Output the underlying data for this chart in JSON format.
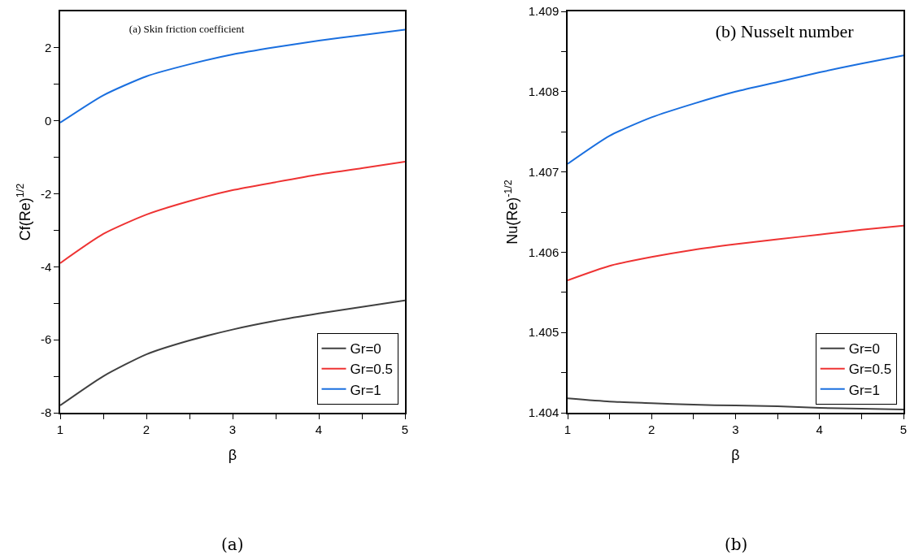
{
  "chart_data": [
    {
      "type": "line",
      "title": "(a) Skin friction coefficient",
      "xlabel": "β",
      "ylabel": "Cf(Re)$^{1/2}$",
      "annotations": [
        "(a)"
      ],
      "x": [
        1,
        1.5,
        2,
        2.5,
        3,
        3.5,
        4,
        4.5,
        5
      ],
      "series": [
        {
          "name": "Gr=0",
          "color": "#404040",
          "values": [
            -7.8,
            -7.0,
            -6.4,
            -6.02,
            -5.72,
            -5.48,
            -5.28,
            -5.1,
            -4.92
          ]
        },
        {
          "name": "Gr=0.5",
          "color": "#ee3333",
          "values": [
            -3.9,
            -3.1,
            -2.57,
            -2.2,
            -1.9,
            -1.68,
            -1.47,
            -1.3,
            -1.12
          ]
        },
        {
          "name": "Gr=1",
          "color": "#1a6fdf",
          "values": [
            -0.05,
            0.7,
            1.22,
            1.55,
            1.82,
            2.02,
            2.2,
            2.35,
            2.5
          ]
        }
      ],
      "xlim": [
        1,
        5
      ],
      "xticks": [
        1,
        {
          "value": 1.5,
          "label": null
        },
        2,
        {
          "value": 2.5,
          "label": null
        },
        3,
        {
          "value": 3.5,
          "label": null
        },
        4,
        {
          "value": 4.5,
          "label": null
        },
        5
      ],
      "ylim": [
        -8,
        3
      ],
      "yticks": [
        -8,
        {
          "value": -7,
          "label": null
        },
        -6,
        {
          "value": -5,
          "label": null
        },
        -4,
        {
          "value": -3,
          "label": null
        },
        -2,
        {
          "value": -1,
          "label": null
        },
        0,
        {
          "value": 1,
          "label": null
        },
        2
      ],
      "grid": false,
      "legend": "bottom right",
      "marker": "none",
      "line_style": "solid"
    },
    {
      "type": "line",
      "title": "(b) Nusselt number",
      "xlabel": "β",
      "ylabel": "Nu(Re)$^{-1/2}$",
      "annotations": [
        "(b)"
      ],
      "x": [
        1,
        1.5,
        2,
        2.5,
        3,
        3.5,
        4,
        4.5,
        5
      ],
      "series": [
        {
          "name": "Gr=0",
          "color": "#404040",
          "values": [
            1.40418,
            1.40414,
            1.40412,
            1.4041,
            1.40409,
            1.40408,
            1.40406,
            1.40405,
            1.40404
          ]
        },
        {
          "name": "Gr=0.5",
          "color": "#ee3333",
          "values": [
            1.40565,
            1.40583,
            1.40594,
            1.40603,
            1.4061,
            1.40616,
            1.40622,
            1.40628,
            1.40633
          ]
        },
        {
          "name": "Gr=1",
          "color": "#1a6fdf",
          "values": [
            1.4071,
            1.40745,
            1.40768,
            1.40785,
            1.408,
            1.40812,
            1.40824,
            1.40835,
            1.40845
          ]
        }
      ],
      "xlim": [
        1,
        5
      ],
      "xticks": [
        1,
        {
          "value": 1.5,
          "label": null
        },
        2,
        {
          "value": 2.5,
          "label": null
        },
        3,
        {
          "value": 3.5,
          "label": null
        },
        4,
        {
          "value": 4.5,
          "label": null
        },
        5
      ],
      "ylim": [
        1.404,
        1.409
      ],
      "yticks": [
        1.404,
        {
          "value": 1.4045,
          "label": null
        },
        1.405,
        {
          "value": 1.4055,
          "label": null
        },
        1.406,
        {
          "value": 1.4065,
          "label": null
        },
        1.407,
        {
          "value": 1.4075,
          "label": null
        },
        1.408,
        {
          "value": 1.4085,
          "label": null
        },
        1.409
      ],
      "grid": false,
      "legend": "bottom right",
      "marker": "none",
      "line_style": "solid"
    }
  ]
}
